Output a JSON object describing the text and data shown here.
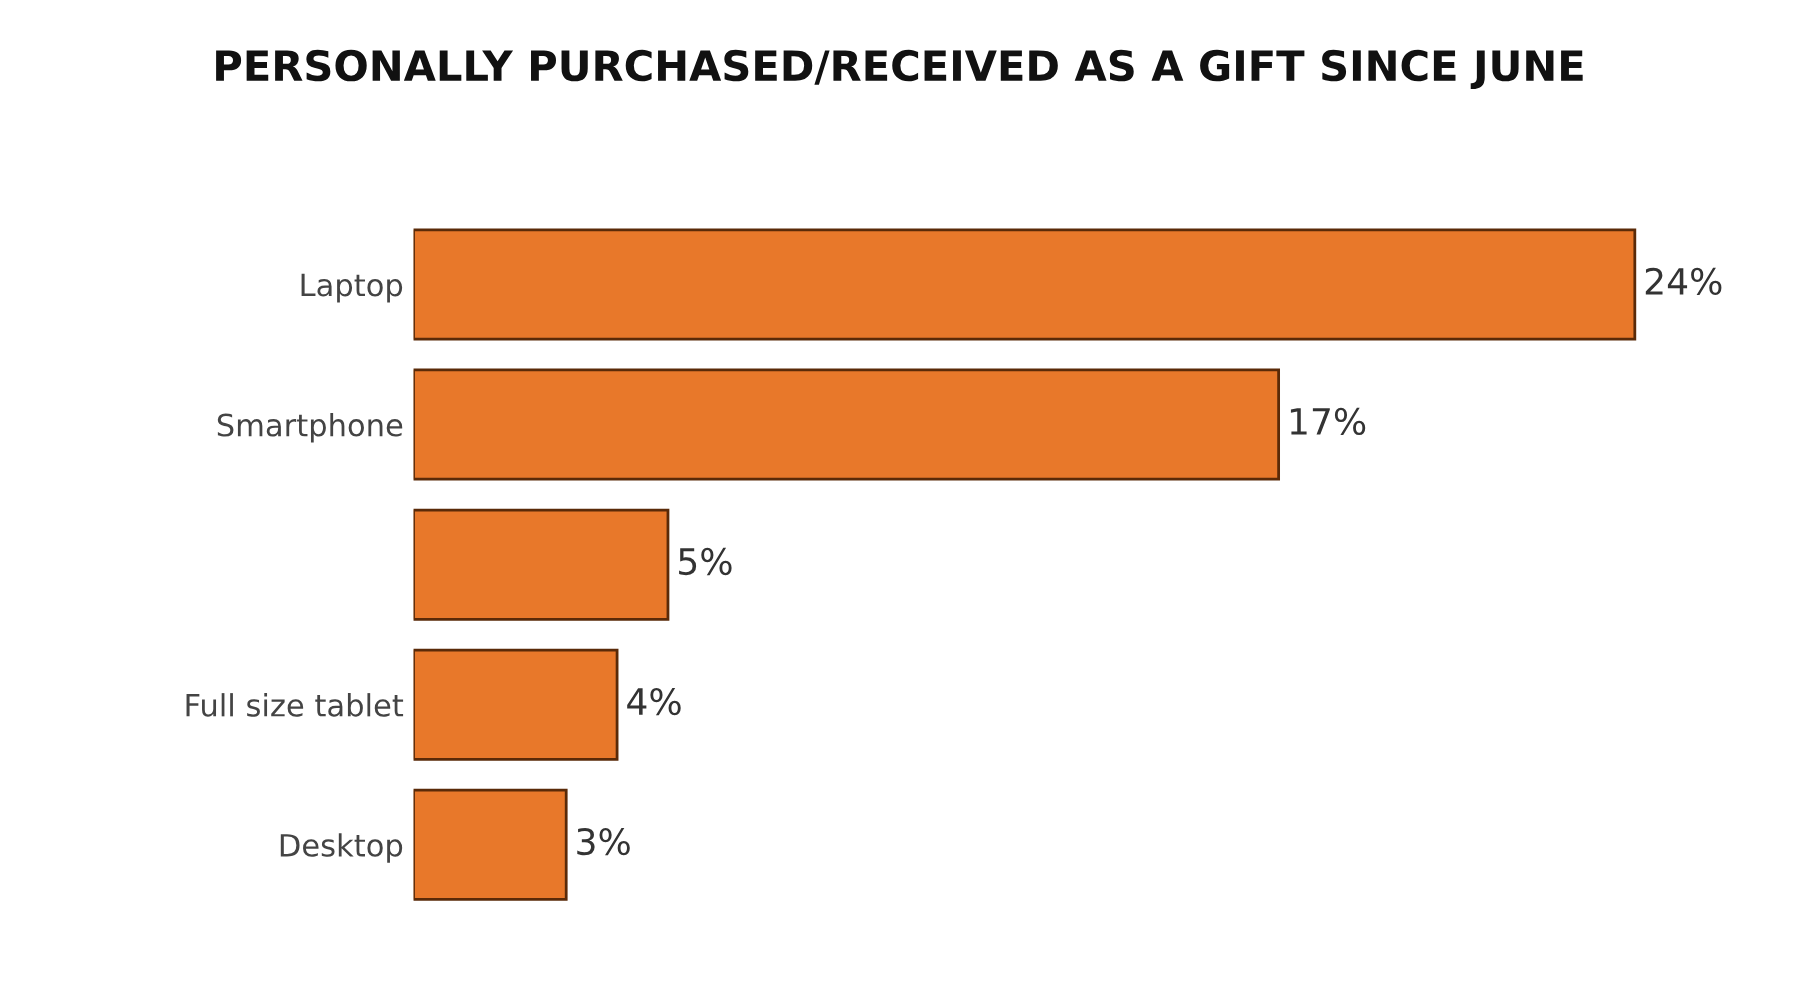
{
  "chart_data": {
    "type": "bar",
    "orientation": "horizontal",
    "title": "PERSONALLY PURCHASED/RECEIVED AS A GIFT SINCE JUNE",
    "categories": [
      "Laptop",
      "Smartphone",
      null,
      "Full size tablet",
      "Desktop"
    ],
    "values": [
      24,
      17,
      5,
      4,
      3
    ],
    "value_labels": [
      "24%",
      "17%",
      "5%",
      "4%",
      "3%"
    ],
    "color": "#e8782a"
  }
}
